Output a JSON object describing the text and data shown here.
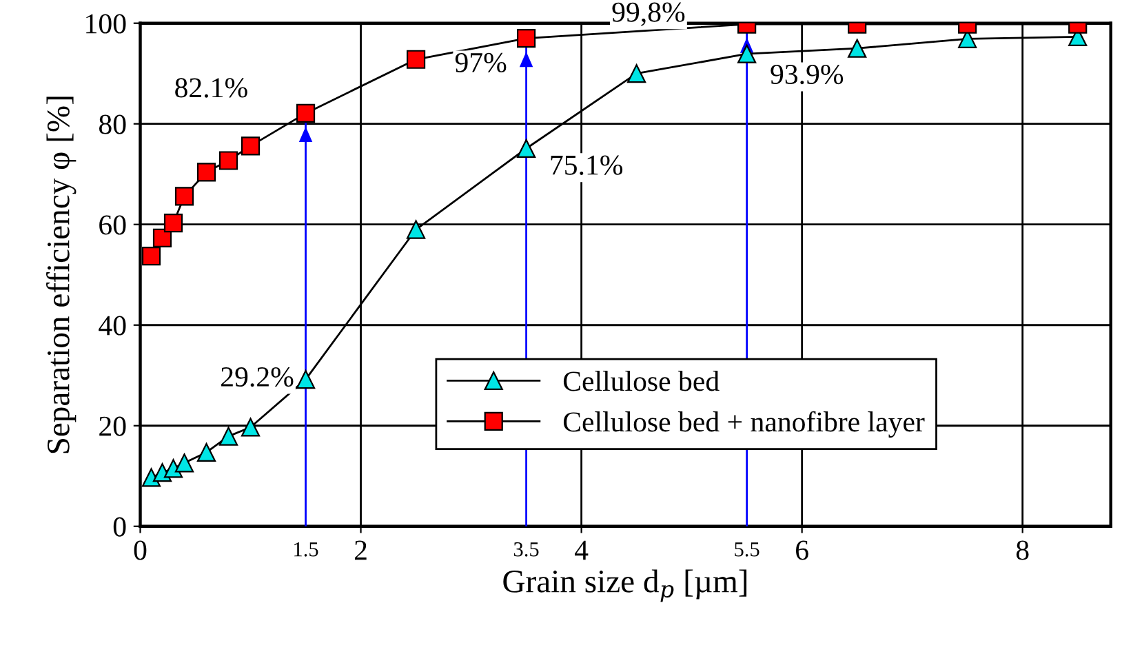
{
  "chart_data": {
    "type": "line",
    "xlabel": "Grain size d$_{p}$ [µm]",
    "ylabel": "Separation efficiency φ [%]",
    "x": [
      0.1,
      0.2,
      0.3,
      0.4,
      0.6,
      0.8,
      1.0,
      1.5,
      2.5,
      3.5,
      4.5,
      5.5,
      6.5,
      7.5,
      8.5
    ],
    "series": [
      {
        "name": "Cellulose bed",
        "color": "#00e5e5",
        "marker": "triangle",
        "values": [
          9.7,
          10.7,
          11.5,
          12.6,
          14.7,
          17.9,
          19.7,
          29.2,
          59,
          75.1,
          90,
          93.9,
          95,
          96.9,
          97.3
        ]
      },
      {
        "name": "Cellulose bed + nanofibre layer",
        "color": "#ff0000",
        "marker": "square",
        "values": [
          53.7,
          57.3,
          60.3,
          65.6,
          70.4,
          72.7,
          75.6,
          82.1,
          92.8,
          97,
          null,
          99.8,
          99.8,
          99.8,
          99.8
        ]
      }
    ],
    "xlim": [
      0,
      8.8
    ],
    "xticks": [
      0,
      2,
      4,
      6,
      8
    ],
    "ylim": [
      0,
      100
    ],
    "yticks": [
      0,
      20,
      40,
      60,
      80,
      100
    ],
    "grid": true,
    "legend": "lower right",
    "ref_lines": [
      {
        "axis": "x",
        "value": 1.5,
        "label": "1.5",
        "color": "#0000ff"
      },
      {
        "axis": "x",
        "value": 3.5,
        "label": "3.5",
        "color": "#0000ff"
      },
      {
        "axis": "x",
        "value": 5.5,
        "label": "5.5",
        "color": "#0000ff"
      }
    ],
    "annotations": [
      {
        "text": "82.1%",
        "x": 1.5,
        "y": 82.1
      },
      {
        "text": "97%",
        "x": 3.5,
        "y": 97
      },
      {
        "text": "99,8%",
        "x": 5.5,
        "y": 99.8
      },
      {
        "text": "75.1%",
        "x": 3.5,
        "y": 75.1
      },
      {
        "text": "93.9%",
        "x": 5.5,
        "y": 93.9
      },
      {
        "text": "29.2%",
        "x": 1.5,
        "y": 29.2
      }
    ]
  }
}
